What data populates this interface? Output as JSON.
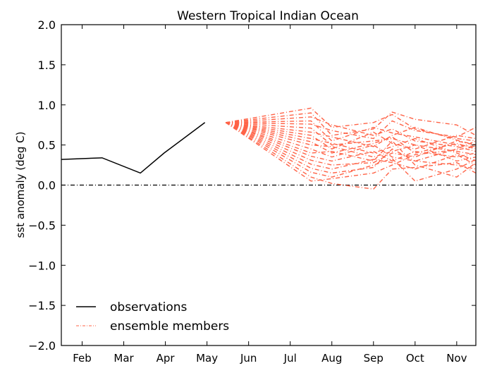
{
  "chart_data": {
    "type": "line",
    "title": "Western Tropical Indian Ocean",
    "xlabel": "",
    "ylabel": "sst anomaly (deg C)",
    "xlim": [
      1.5,
      11.46
    ],
    "ylim": [
      -2.0,
      2.0
    ],
    "x_ticks": [
      {
        "value": 2,
        "label": "Feb"
      },
      {
        "value": 3,
        "label": "Mar"
      },
      {
        "value": 4,
        "label": "Apr"
      },
      {
        "value": 5,
        "label": "May"
      },
      {
        "value": 6,
        "label": "Jun"
      },
      {
        "value": 7,
        "label": "Jul"
      },
      {
        "value": 8,
        "label": "Aug"
      },
      {
        "value": 9,
        "label": "Sep"
      },
      {
        "value": 10,
        "label": "Oct"
      },
      {
        "value": 11,
        "label": "Nov"
      }
    ],
    "y_ticks": [
      {
        "value": 2.0,
        "label": "2.0"
      },
      {
        "value": 1.5,
        "label": "1.5"
      },
      {
        "value": 1.0,
        "label": "1.0"
      },
      {
        "value": 0.5,
        "label": "0.5"
      },
      {
        "value": 0.0,
        "label": "0.0"
      },
      {
        "value": -0.5,
        "label": "−0.5"
      },
      {
        "value": -1.0,
        "label": "−1.0"
      },
      {
        "value": -1.5,
        "label": "−1.5"
      },
      {
        "value": -2.0,
        "label": "−2.0"
      }
    ],
    "zero_line": 0.0,
    "legend": {
      "placement": "lower-left",
      "entries": [
        "observations",
        "ensemble members"
      ]
    },
    "colors": {
      "observations": "#000000",
      "ensemble": "#ff6347"
    },
    "observations": {
      "x": [
        1.5,
        2.48,
        3.4,
        3.97,
        4.95
      ],
      "y": [
        0.32,
        0.34,
        0.15,
        0.4,
        0.78
      ]
    },
    "ensemble": {
      "x": [
        5.45,
        7.5,
        8.0,
        9.0,
        9.45,
        10.0,
        11.0,
        11.46
      ],
      "members": [
        [
          0.78,
          0.96,
          0.72,
          0.78,
          0.88,
          0.7,
          0.58,
          0.55
        ],
        [
          0.78,
          0.9,
          0.62,
          0.7,
          0.91,
          0.82,
          0.75,
          0.62
        ],
        [
          0.78,
          0.85,
          0.75,
          0.62,
          0.7,
          0.55,
          0.48,
          0.42
        ],
        [
          0.78,
          0.8,
          0.55,
          0.72,
          0.65,
          0.6,
          0.5,
          0.48
        ],
        [
          0.78,
          0.76,
          0.68,
          0.58,
          0.8,
          0.68,
          0.6,
          0.72
        ],
        [
          0.78,
          0.71,
          0.5,
          0.55,
          0.58,
          0.5,
          0.42,
          0.38
        ],
        [
          0.78,
          0.66,
          0.6,
          0.48,
          0.62,
          0.72,
          0.56,
          0.5
        ],
        [
          0.78,
          0.62,
          0.45,
          0.66,
          0.52,
          0.45,
          0.62,
          0.58
        ],
        [
          0.78,
          0.58,
          0.52,
          0.4,
          0.48,
          0.58,
          0.4,
          0.3
        ],
        [
          0.78,
          0.54,
          0.4,
          0.52,
          0.6,
          0.4,
          0.52,
          0.45
        ],
        [
          0.78,
          0.5,
          0.48,
          0.35,
          0.42,
          0.5,
          0.3,
          0.35
        ],
        [
          0.78,
          0.45,
          0.35,
          0.5,
          0.35,
          0.3,
          0.45,
          0.55
        ],
        [
          0.78,
          0.4,
          0.42,
          0.3,
          0.55,
          0.25,
          0.1,
          0.28
        ],
        [
          0.78,
          0.36,
          0.3,
          0.42,
          0.3,
          0.42,
          0.35,
          0.4
        ],
        [
          0.78,
          0.31,
          0.25,
          0.28,
          0.4,
          0.35,
          0.55,
          0.5
        ],
        [
          0.78,
          0.26,
          0.2,
          0.32,
          0.28,
          0.2,
          0.38,
          0.25
        ],
        [
          0.78,
          0.21,
          0.15,
          0.22,
          0.45,
          0.3,
          0.25,
          0.2
        ],
        [
          0.78,
          0.16,
          0.1,
          0.25,
          0.33,
          0.05,
          0.2,
          0.32
        ],
        [
          0.78,
          0.1,
          0.02,
          -0.05,
          0.2,
          0.22,
          0.28,
          0.15
        ],
        [
          0.78,
          0.05,
          0.08,
          0.15,
          0.25,
          0.38,
          0.44,
          0.48
        ]
      ]
    }
  }
}
